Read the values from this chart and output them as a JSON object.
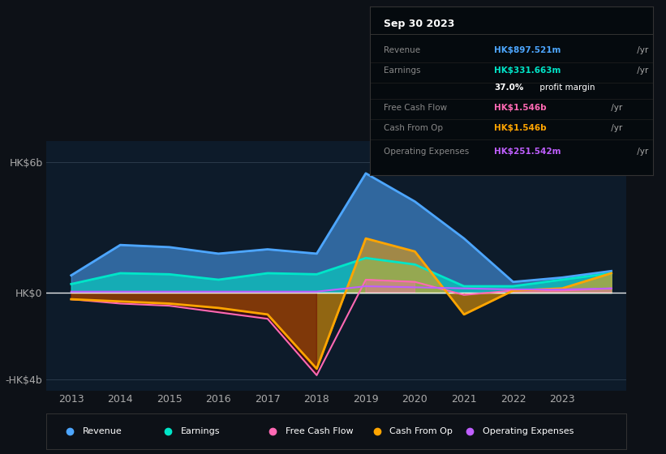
{
  "bg_color": "#0d1117",
  "plot_bg_color": "#0d1b2a",
  "years": [
    2013,
    2014,
    2015,
    2016,
    2017,
    2018,
    2019,
    2020,
    2021,
    2022,
    2023,
    2024
  ],
  "revenue": [
    0.8,
    2.2,
    2.1,
    1.8,
    2.0,
    1.8,
    5.5,
    4.2,
    2.5,
    0.5,
    0.7,
    1.0
  ],
  "earnings": [
    0.4,
    0.9,
    0.85,
    0.6,
    0.9,
    0.85,
    1.6,
    1.3,
    0.3,
    0.3,
    0.6,
    0.9
  ],
  "free_cash_flow": [
    -0.3,
    -0.5,
    -0.6,
    -0.9,
    -1.2,
    -3.8,
    0.6,
    0.5,
    -0.1,
    0.1,
    0.1,
    0.2
  ],
  "cash_from_op": [
    -0.3,
    -0.4,
    -0.5,
    -0.7,
    -1.0,
    -3.5,
    2.5,
    1.9,
    -1.0,
    0.1,
    0.2,
    0.9
  ],
  "operating_expenses": [
    0.05,
    0.05,
    0.05,
    0.05,
    0.05,
    0.05,
    0.3,
    0.25,
    0.2,
    0.15,
    0.15,
    0.2
  ],
  "revenue_color": "#4da6ff",
  "earnings_color": "#00e5c8",
  "free_cash_flow_color": "#ff69b4",
  "cash_from_op_color": "#ffa500",
  "operating_expenses_color": "#bf5fff",
  "ytick_labels": [
    "HK$6b",
    "HK$0",
    "-HK$4b"
  ],
  "ytick_positions": [
    6,
    0,
    -4
  ],
  "ylim": [
    -4.5,
    7.0
  ],
  "xlim": [
    2012.5,
    2024.3
  ],
  "xtick_labels": [
    "2013",
    "2014",
    "2015",
    "2016",
    "2017",
    "2018",
    "2019",
    "2020",
    "2021",
    "2022",
    "2023"
  ],
  "xtick_positions": [
    2013,
    2014,
    2015,
    2016,
    2017,
    2018,
    2019,
    2020,
    2021,
    2022,
    2023
  ],
  "info_box_title": "Sep 30 2023",
  "info_rows": [
    {
      "label": "Revenue",
      "value": "HK$897.521m",
      "suffix": " /yr",
      "color": "#4da6ff",
      "extra": null
    },
    {
      "label": "Earnings",
      "value": "HK$331.663m",
      "suffix": " /yr",
      "color": "#00e5c8",
      "extra": null
    },
    {
      "label": "",
      "value": "37.0%",
      "suffix": " profit margin",
      "color": "#ffffff",
      "extra": "bold"
    },
    {
      "label": "Free Cash Flow",
      "value": "HK$1.546b",
      "suffix": " /yr",
      "color": "#ff69b4",
      "extra": null
    },
    {
      "label": "Cash From Op",
      "value": "HK$1.546b",
      "suffix": " /yr",
      "color": "#ffa500",
      "extra": null
    },
    {
      "label": "Operating Expenses",
      "value": "HK$251.542m",
      "suffix": " /yr",
      "color": "#bf5fff",
      "extra": null
    }
  ],
  "legend_items": [
    {
      "label": "Revenue",
      "color": "#4da6ff"
    },
    {
      "label": "Earnings",
      "color": "#00e5c8"
    },
    {
      "label": "Free Cash Flow",
      "color": "#ff69b4"
    },
    {
      "label": "Cash From Op",
      "color": "#ffa500"
    },
    {
      "label": "Operating Expenses",
      "color": "#bf5fff"
    }
  ]
}
